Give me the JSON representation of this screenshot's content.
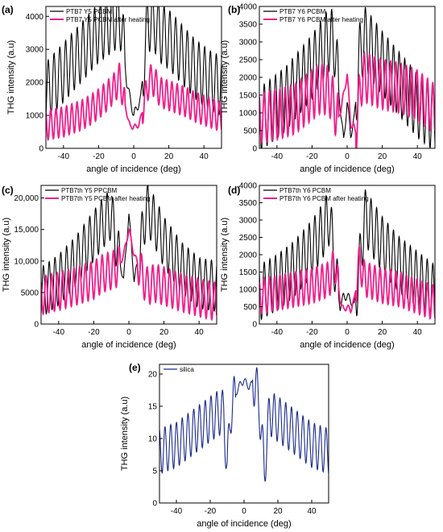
{
  "figure": {
    "panels": [
      {
        "id": "a",
        "letter": "(a)",
        "ylabel": "THG intensity (a.u)",
        "xlabel": "angle of incidence (deg)",
        "yticks": [
          "0",
          "1000",
          "2000",
          "3000",
          "4000"
        ],
        "xticks": [
          "-40",
          "-20",
          "0",
          "20",
          "40"
        ],
        "legend": [
          "PTB7 Y5 PCBM",
          "PTB7 Y5 PCBM after heating"
        ]
      },
      {
        "id": "b",
        "letter": "(b)",
        "ylabel": "THG intensity (a.u)",
        "xlabel": "angle of incidence (deg)",
        "yticks": [
          "0",
          "500",
          "1000",
          "1500",
          "2000",
          "2500",
          "3000",
          "3500",
          "4000"
        ],
        "xticks": [
          "-40",
          "-20",
          "0",
          "20",
          "40"
        ],
        "legend": [
          "PTB7 Y6 PCBM",
          "PTB7 Y6 PCBM after heating"
        ]
      },
      {
        "id": "c",
        "letter": "(c)",
        "ylabel": "THG intensity (a.u)",
        "xlabel": "angle of incidence (deg)",
        "yticks": [
          "0",
          "5000",
          "10,000",
          "15,000",
          "20,000"
        ],
        "xticks": [
          "-40",
          "-20",
          "0",
          "20",
          "40"
        ],
        "legend": [
          "PTB7th Y5 PPCBM",
          "PTB7th Y5  PCBM after heating"
        ]
      },
      {
        "id": "d",
        "letter": "(d)",
        "ylabel": "THG intensity (a.u)",
        "xlabel": "angle of incidence (deg)",
        "yticks": [
          "0",
          "500",
          "1000",
          "1500",
          "2000",
          "2500",
          "3000",
          "3500",
          "4000"
        ],
        "xticks": [
          "-40",
          "-20",
          "0",
          "20",
          "40"
        ],
        "legend": [
          "PTB7th Y6 PCBM",
          "PTB7th Y6 PCBM after heating"
        ]
      },
      {
        "id": "e",
        "letter": "(e)",
        "ylabel": "THG intensity (a.u)",
        "xlabel": "angle of incidence (deg)",
        "yticks": [
          "0",
          "5",
          "10",
          "15",
          "20"
        ],
        "xticks": [
          "-40",
          "-20",
          "0",
          "20",
          "40"
        ],
        "legend": [
          "silica"
        ]
      }
    ]
  },
  "colors": {
    "black": "#000000",
    "magenta": "#ee1f8c",
    "navy": "#1a2a8c"
  },
  "chart_data": [
    {
      "type": "line",
      "panel": "a",
      "xlabel": "angle of incidence (deg)",
      "ylabel": "THG intensity (a.u)",
      "xlim": [
        -50,
        50
      ],
      "ylim": [
        0,
        4300
      ],
      "series": [
        {
          "name": "PTB7 Y5 PCBM",
          "color": "#000000",
          "x": [
            -50,
            -45,
            -40,
            -35,
            -30,
            -25,
            -20,
            -15,
            -10,
            -7,
            -4,
            0,
            4,
            8,
            12,
            15,
            20,
            25,
            30,
            35,
            40,
            45,
            50
          ],
          "y": [
            1700,
            2000,
            2300,
            2600,
            2900,
            3200,
            3500,
            3700,
            3900,
            3850,
            2000,
            1000,
            1500,
            3850,
            3800,
            3500,
            3300,
            3000,
            2700,
            2400,
            2200,
            2000,
            1900
          ],
          "osc_period": 3.3,
          "osc_amp": 900
        },
        {
          "name": "PTB7 Y5 PCBM after heating",
          "color": "#ee1f8c",
          "x": [
            -50,
            -45,
            -40,
            -35,
            -30,
            -25,
            -20,
            -15,
            -10,
            -8,
            -5,
            -2,
            0,
            3,
            6,
            9,
            12,
            15,
            20,
            25,
            30,
            35,
            40,
            45,
            50
          ],
          "y": [
            700,
            750,
            800,
            900,
            1000,
            1150,
            1350,
            1600,
            1900,
            2150,
            1300,
            650,
            650,
            700,
            1400,
            2100,
            2000,
            1700,
            1600,
            1500,
            1400,
            1250,
            1150,
            1050,
            950
          ],
          "osc_period": 3.0,
          "osc_amp": 450
        }
      ]
    },
    {
      "type": "line",
      "panel": "b",
      "xlabel": "angle of incidence (deg)",
      "ylabel": "THG intensity (a.u)",
      "xlim": [
        -50,
        50
      ],
      "ylim": [
        0,
        4000
      ],
      "series": [
        {
          "name": "PTB7 Y6 PCBM",
          "color": "#000000",
          "x": [
            -50,
            -45,
            -40,
            -35,
            -30,
            -25,
            -20,
            -15,
            -10,
            -7,
            -4,
            -2,
            0,
            2,
            4,
            7,
            10,
            14,
            20,
            25,
            30,
            35,
            40,
            45,
            50
          ],
          "y": [
            800,
            1000,
            1200,
            1400,
            1700,
            2000,
            2300,
            2700,
            3100,
            2900,
            1200,
            200,
            1300,
            400,
            800,
            2600,
            3100,
            2800,
            2400,
            2100,
            1800,
            1500,
            1200,
            1000,
            800
          ],
          "osc_period": 3.2,
          "osc_amp": 900
        },
        {
          "name": "PTB7 Y6 PCBM after heating",
          "color": "#ee1f8c",
          "x": [
            -50,
            -40,
            -30,
            -20,
            -15,
            -10,
            -5,
            -2,
            0,
            2,
            5,
            8,
            10,
            15,
            20,
            30,
            40,
            50
          ],
          "y": [
            850,
            950,
            1100,
            1500,
            1700,
            1600,
            800,
            1500,
            2100,
            700,
            500,
            1900,
            2000,
            1900,
            1800,
            1700,
            1500,
            1100
          ],
          "osc_period": 3.0,
          "osc_amp": 700
        }
      ]
    },
    {
      "type": "line",
      "panel": "c",
      "xlabel": "angle of incidence (deg)",
      "ylabel": "THG intensity (a.u)",
      "xlim": [
        -50,
        50
      ],
      "ylim": [
        0,
        22000
      ],
      "series": [
        {
          "name": "PTB7th Y5 PPCBM",
          "color": "#000000",
          "x": [
            -50,
            -40,
            -30,
            -20,
            -15,
            -10,
            -6,
            -3,
            0,
            3,
            6,
            10,
            15,
            20,
            30,
            40,
            50
          ],
          "y": [
            5000,
            7000,
            10000,
            14000,
            16000,
            17500,
            11000,
            7000,
            17500,
            7000,
            11000,
            18500,
            16000,
            13000,
            9000,
            6500,
            6000
          ],
          "osc_period": 3.3,
          "osc_amp": 4000
        },
        {
          "name": "PTB7th Y5  PCBM after heating",
          "color": "#ee1f8c",
          "x": [
            -50,
            -40,
            -30,
            -20,
            -15,
            -10,
            -6,
            -3,
            0,
            3,
            6,
            10,
            15,
            20,
            30,
            40,
            50
          ],
          "y": [
            4500,
            5200,
            6000,
            7000,
            8000,
            8500,
            9000,
            11000,
            15000,
            11000,
            9000,
            6000,
            6500,
            6000,
            5000,
            4200,
            3500
          ],
          "osc_period": 3.2,
          "osc_amp": 3000
        }
      ]
    },
    {
      "type": "line",
      "panel": "d",
      "xlabel": "angle of incidence (deg)",
      "ylabel": "THG intensity (a.u)",
      "xlim": [
        -50,
        50
      ],
      "ylim": [
        0,
        4000
      ],
      "series": [
        {
          "name": "PTB7th Y6 PCBM",
          "color": "#000000",
          "x": [
            -50,
            -40,
            -30,
            -20,
            -15,
            -10,
            -6,
            -4,
            -2,
            0,
            2,
            4,
            6,
            10,
            15,
            20,
            30,
            40,
            50
          ],
          "y": [
            900,
            1200,
            1600,
            2200,
            2600,
            3100,
            1200,
            500,
            800,
            800,
            700,
            500,
            1200,
            3100,
            2700,
            2300,
            1700,
            1300,
            900
          ],
          "osc_period": 3.2,
          "osc_amp": 800
        },
        {
          "name": "PTB7th Y6 PCBM after heating",
          "color": "#ee1f8c",
          "x": [
            -50,
            -40,
            -30,
            -20,
            -15,
            -10,
            -7,
            -4,
            -2,
            0,
            2,
            4,
            7,
            10,
            15,
            20,
            30,
            40,
            50
          ],
          "y": [
            800,
            900,
            1000,
            1100,
            1200,
            1300,
            1800,
            700,
            400,
            500,
            400,
            700,
            1800,
            1300,
            1200,
            1100,
            1000,
            800,
            600
          ],
          "osc_period": 3.0,
          "osc_amp": 500
        }
      ]
    },
    {
      "type": "line",
      "panel": "e",
      "xlabel": "angle of incidence (deg)",
      "ylabel": "THG intensity (a.u)",
      "xlim": [
        -50,
        50
      ],
      "ylim": [
        0,
        21.5
      ],
      "series": [
        {
          "name": "silica",
          "color": "#1a2a8c",
          "x": [
            -50,
            -40,
            -30,
            -20,
            -15,
            -12,
            -10,
            -8,
            -5,
            -2,
            0,
            3,
            5,
            7,
            9,
            12,
            15,
            20,
            30,
            40,
            50
          ],
          "y": [
            8,
            9,
            11,
            13,
            14,
            14,
            5,
            14,
            17,
            18.5,
            19,
            18,
            18.5,
            18.5,
            15,
            5,
            14,
            13,
            11,
            9,
            8
          ],
          "osc_period": 3.4,
          "osc_amp": 3.5
        }
      ]
    }
  ]
}
